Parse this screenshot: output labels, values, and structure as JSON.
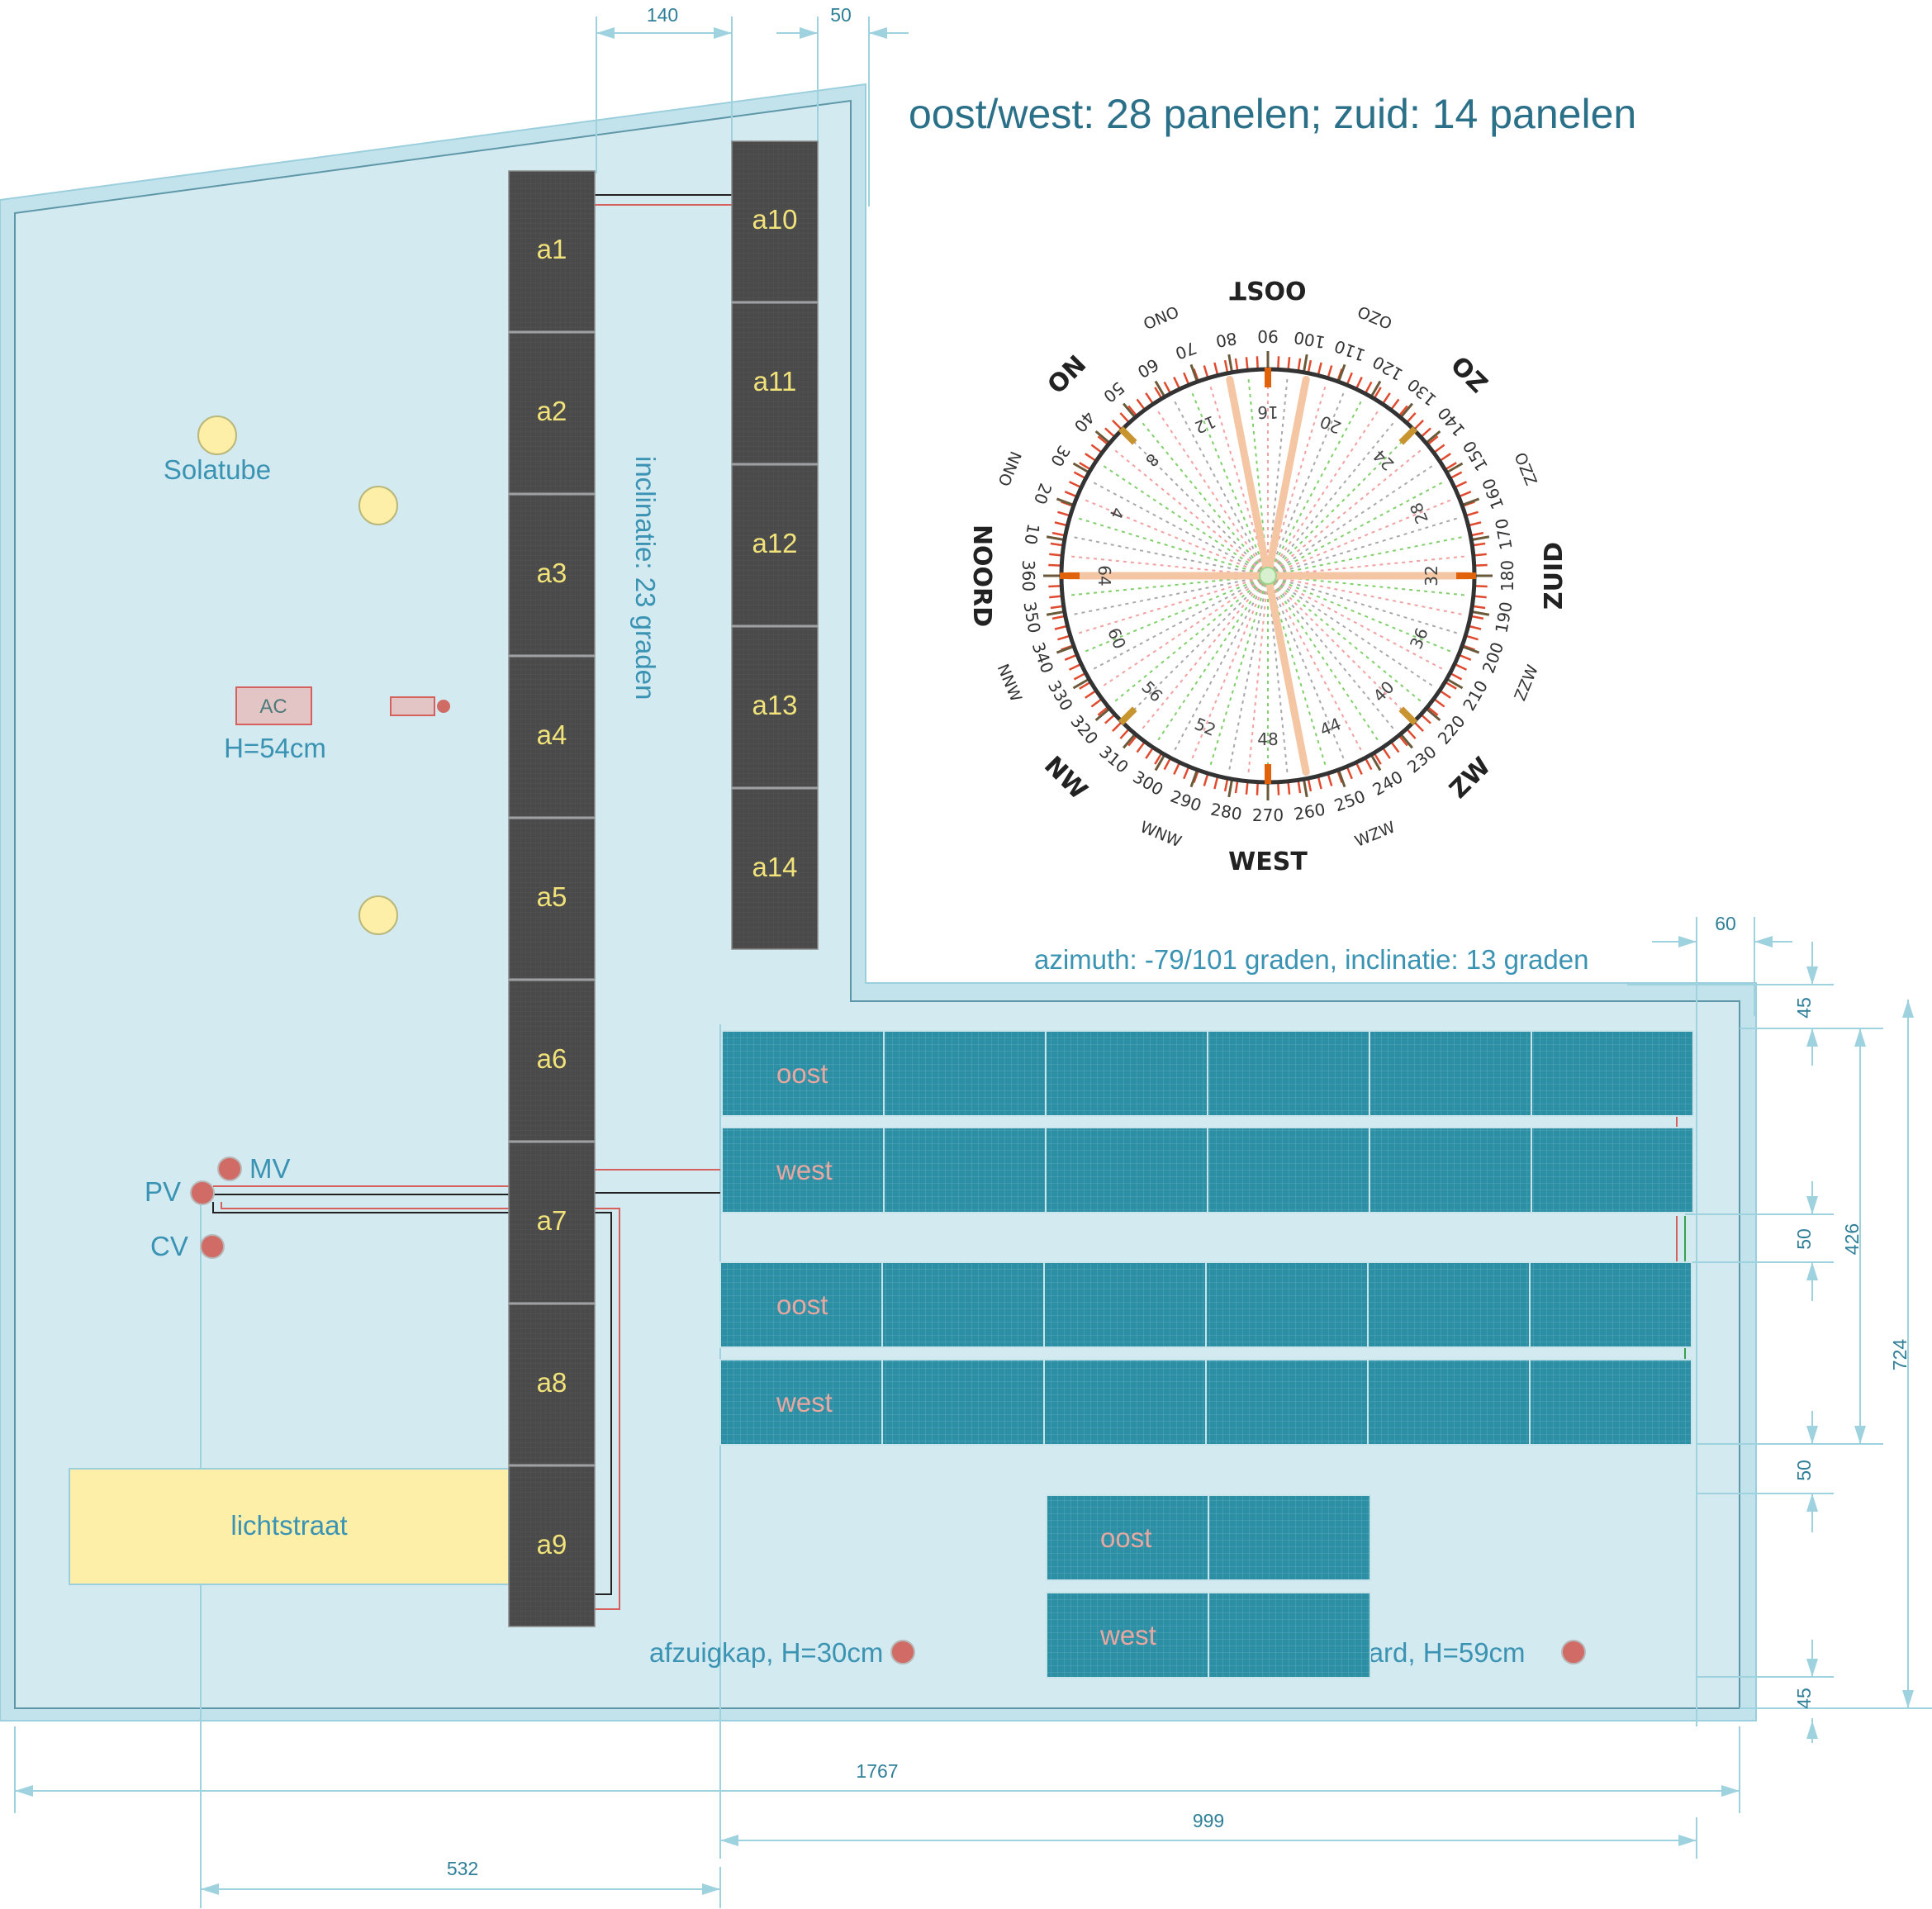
{
  "title": "oost/west: 28 panelen; zuid: 14 panelen",
  "inclination_label": "inclinatie: 23 graden",
  "azimuth_label": "azimuth: -79/101 graden, inclinatie: 13 graden",
  "south_panels": [
    "a1",
    "a2",
    "a3",
    "a4",
    "a5",
    "a6",
    "a7",
    "a8",
    "a9",
    "a10",
    "a11",
    "a12",
    "a13",
    "a14"
  ],
  "ew_rows": [
    "oost",
    "west",
    "oost",
    "west"
  ],
  "ew_small_rows": [
    "oost",
    "west"
  ],
  "roof_items": {
    "solatube": "Solatube",
    "ac": "AC",
    "ac_height": "H=54cm",
    "pv": "PV",
    "mv": "MV",
    "cv": "CV",
    "lichtstraat": "lichtstraat",
    "afzuigkap": "afzuigkap, H=30cm",
    "haard": "haard, H=59cm"
  },
  "dimensions": {
    "top_140": "140",
    "top_50": "50",
    "right_60": "60",
    "right_45_top": "45",
    "right_50_mid": "50",
    "right_426": "426",
    "right_724": "724",
    "right_50_low": "50",
    "right_45_bottom": "45",
    "bottom_1767": "1767",
    "bottom_999": "999",
    "bottom_532": "532"
  },
  "compass": {
    "major": [
      {
        "label": "NOORD",
        "deg": 0
      },
      {
        "label": "NO",
        "deg": 45
      },
      {
        "label": "OOST",
        "deg": 90
      },
      {
        "label": "ZO",
        "deg": 135
      },
      {
        "label": "ZUID",
        "deg": 180
      },
      {
        "label": "ZW",
        "deg": 225
      },
      {
        "label": "WEST",
        "deg": 270
      },
      {
        "label": "NW",
        "deg": 315
      }
    ],
    "minor": [
      {
        "label": "NNO",
        "deg": 22.5
      },
      {
        "label": "ONO",
        "deg": 67.5
      },
      {
        "label": "OZO",
        "deg": 112.5
      },
      {
        "label": "ZZO",
        "deg": 157.5
      },
      {
        "label": "ZZW",
        "deg": 202.5
      },
      {
        "label": "WZW",
        "deg": 247.5
      },
      {
        "label": "WNW",
        "deg": 292.5
      },
      {
        "label": "NNW",
        "deg": 337.5
      }
    ],
    "degree_labels": [
      "10",
      "20",
      "30",
      "40",
      "50",
      "60",
      "70",
      "80",
      "90",
      "100",
      "110",
      "120",
      "130",
      "140",
      "150",
      "160",
      "170",
      "180",
      "190",
      "200",
      "210",
      "220",
      "230",
      "240",
      "250",
      "260",
      "270",
      "280",
      "290",
      "300",
      "310",
      "320",
      "330",
      "340",
      "350",
      "360"
    ],
    "inner_labels": [
      "4",
      "8",
      "12",
      "16",
      "20",
      "24",
      "28",
      "32",
      "36",
      "40",
      "44",
      "48",
      "52",
      "56",
      "60",
      "64"
    ],
    "highlight_rays_deg": [
      101,
      79,
      180,
      259,
      0
    ]
  },
  "colors": {
    "roof_fill": "#d3eaf0",
    "roof_outline": "#9ccfdd",
    "south_panel": "#4d4d4d",
    "ew_panel": "#2a8fa3",
    "accent_text": "#3a93b3",
    "marker": "#d06b66",
    "lichtstraat_fill": "#fdefa8",
    "solatube_fill": "#fdefa8"
  }
}
